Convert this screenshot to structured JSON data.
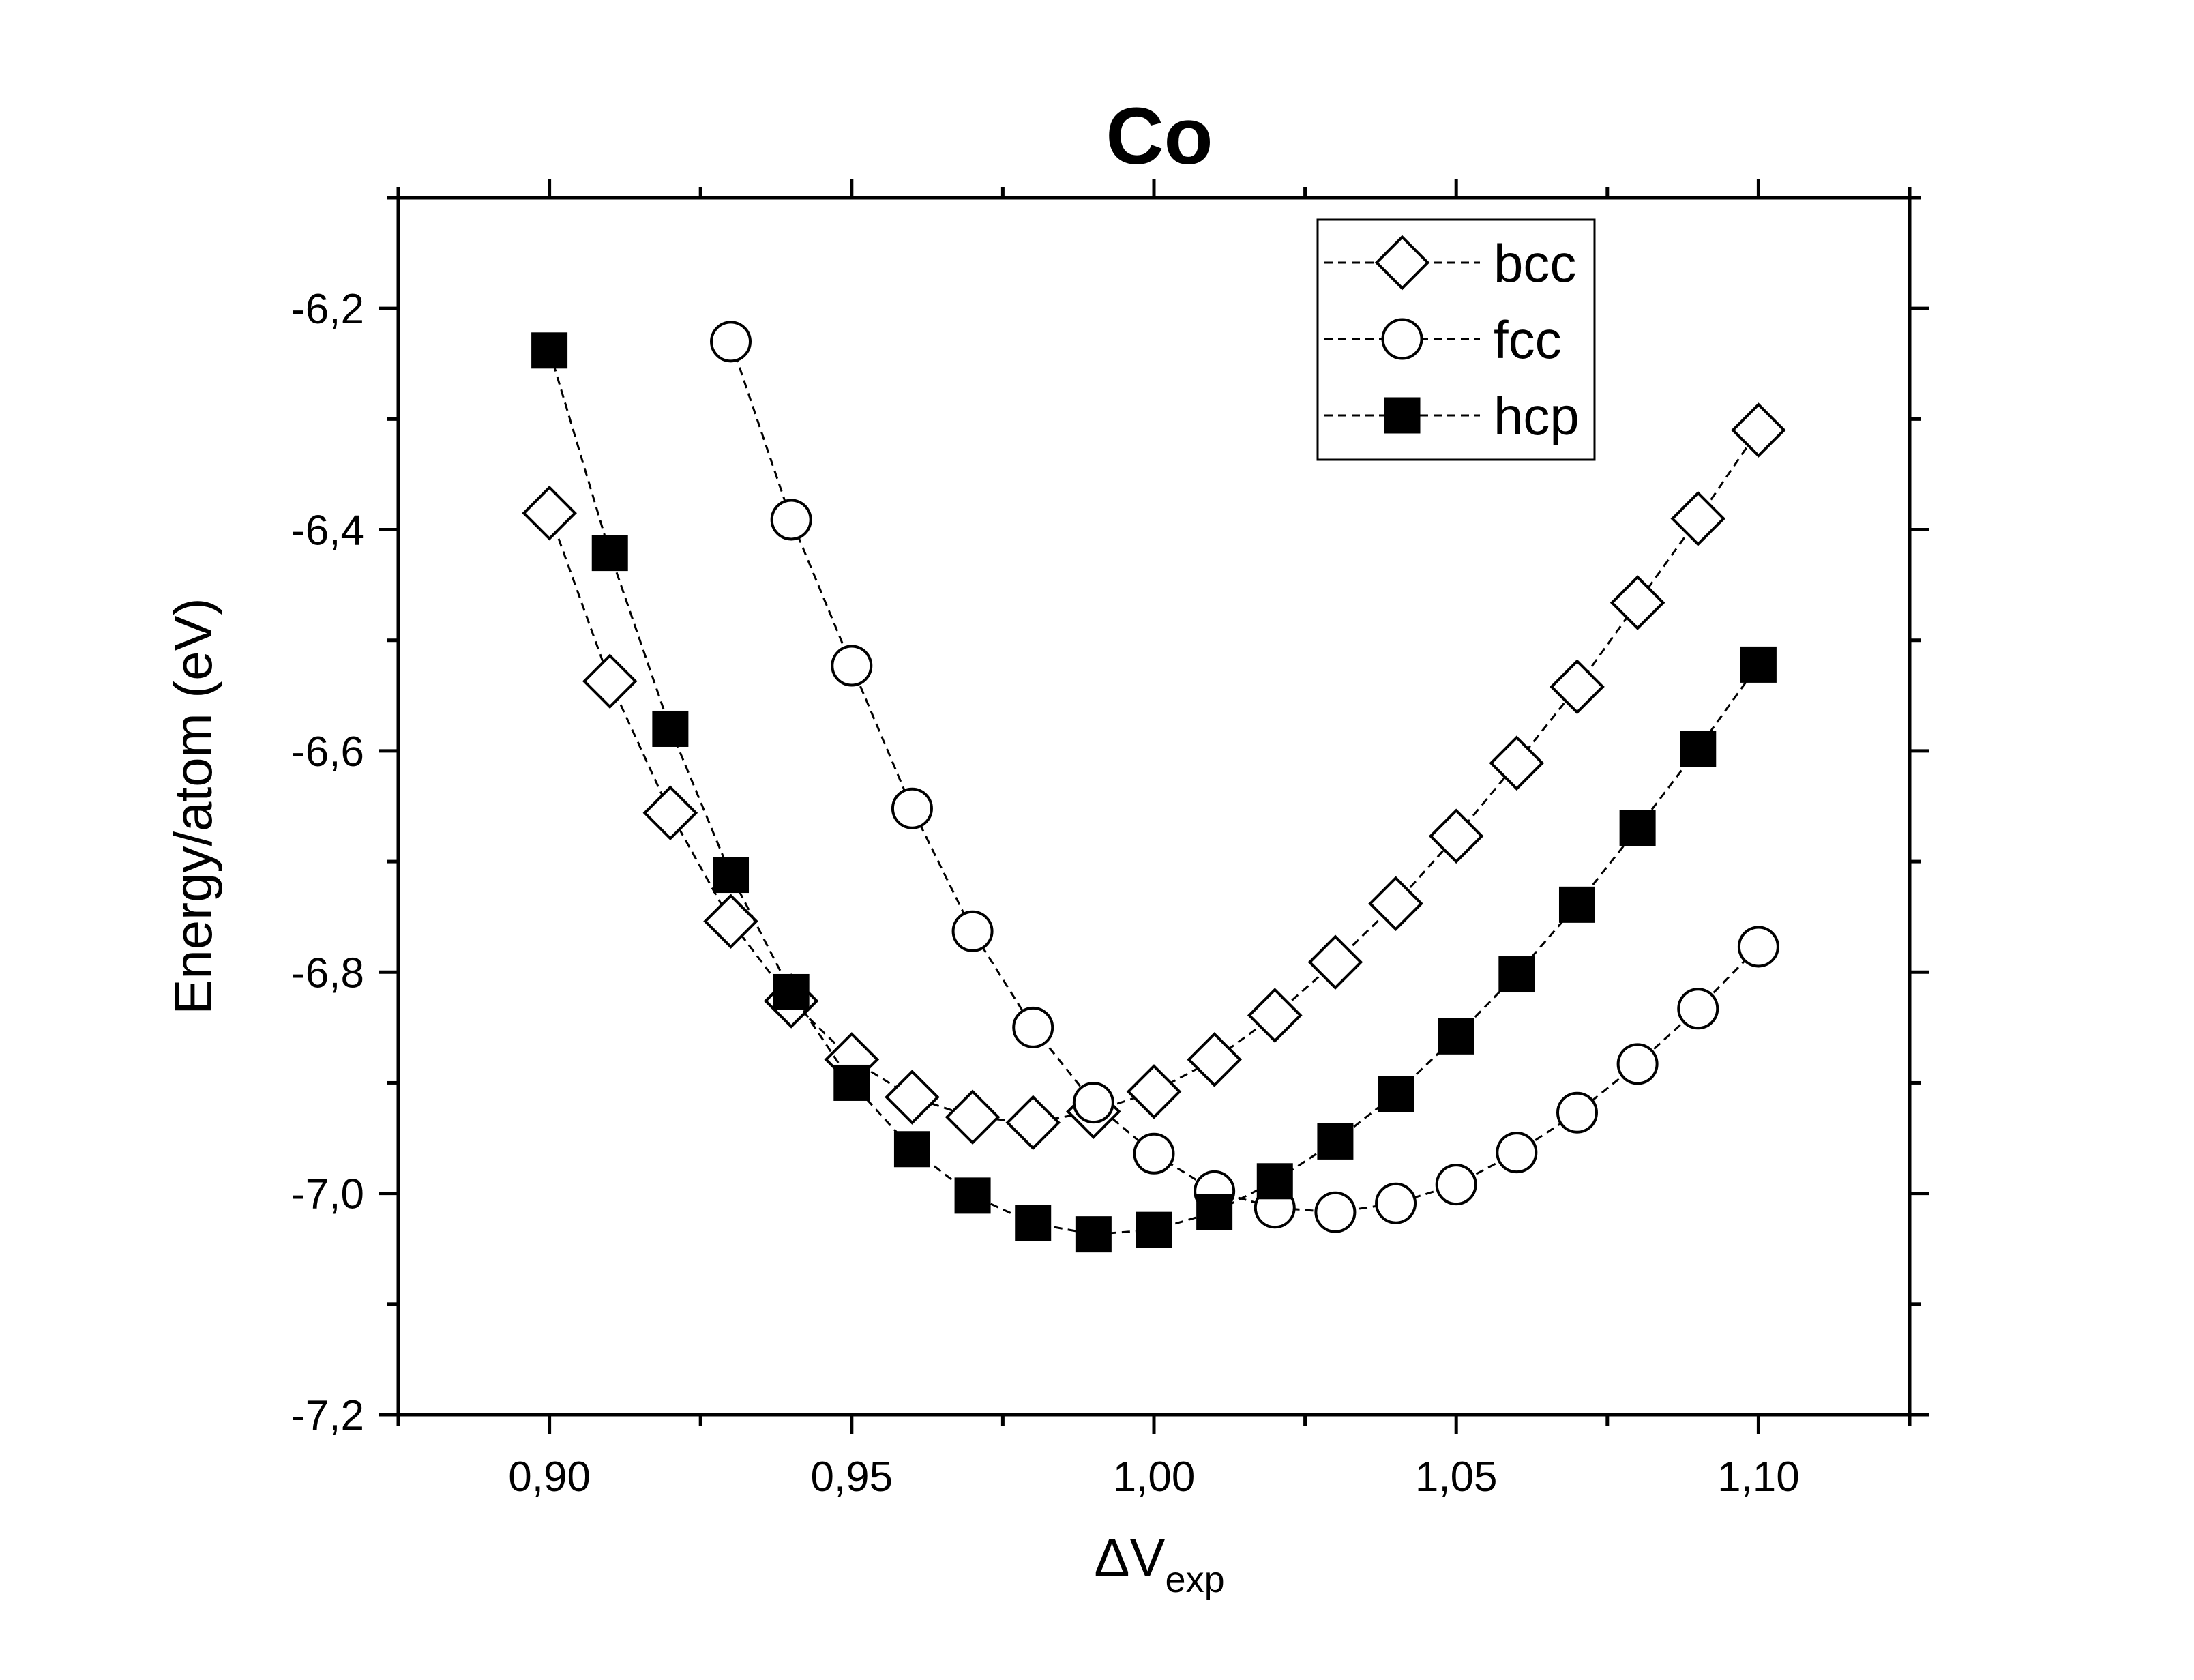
{
  "chart_data": {
    "type": "line",
    "title": "Co",
    "xlabel": "ΔV",
    "xlabel_subscript": "exp",
    "ylabel": "Energy/atom (eV)",
    "xlim": [
      0.875,
      1.125
    ],
    "ylim": [
      -7.2,
      -6.1
    ],
    "x_ticks": [
      0.9,
      0.95,
      1.0,
      1.05,
      1.1
    ],
    "x_tick_labels": [
      "0,90",
      "0,95",
      "1,00",
      "1,05",
      "1,10"
    ],
    "y_ticks": [
      -6.2,
      -6.4,
      -6.6,
      -6.8,
      -7.0,
      -7.2
    ],
    "y_tick_labels": [
      "-6,2",
      "-6,4",
      "-6,6",
      "-6,8",
      "-7,0",
      "-7,2"
    ],
    "grid": false,
    "legend_position": "top-right",
    "line_style": "dashed",
    "series": [
      {
        "name": "bcc",
        "marker": "diamond-open",
        "x": [
          0.9,
          0.91,
          0.92,
          0.93,
          0.94,
          0.95,
          0.96,
          0.97,
          0.98,
          0.99,
          1.0,
          1.01,
          1.02,
          1.03,
          1.04,
          1.05,
          1.06,
          1.07,
          1.08,
          1.09,
          1.1
        ],
        "y": [
          -6.385,
          -6.537,
          -6.656,
          -6.754,
          -6.826,
          -6.879,
          -6.913,
          -6.931,
          -6.936,
          -6.926,
          -6.908,
          -6.879,
          -6.839,
          -6.791,
          -6.738,
          -6.677,
          -6.611,
          -6.542,
          -6.466,
          -6.39,
          -6.31
        ]
      },
      {
        "name": "fcc",
        "marker": "circle-open",
        "x": [
          0.93,
          0.94,
          0.95,
          0.96,
          0.97,
          0.98,
          0.99,
          1.0,
          1.01,
          1.02,
          1.03,
          1.04,
          1.05,
          1.06,
          1.07,
          1.08,
          1.09,
          1.1
        ],
        "y": [
          -6.23,
          -6.391,
          -6.523,
          -6.652,
          -6.763,
          -6.85,
          -6.918,
          -6.964,
          -6.998,
          -7.013,
          -7.017,
          -7.009,
          -6.992,
          -6.963,
          -6.927,
          -6.883,
          -6.833,
          -6.777
        ]
      },
      {
        "name": "hcp",
        "marker": "square-filled",
        "x": [
          0.9,
          0.91,
          0.92,
          0.93,
          0.94,
          0.95,
          0.96,
          0.97,
          0.98,
          0.99,
          1.0,
          1.01,
          1.02,
          1.03,
          1.04,
          1.05,
          1.06,
          1.07,
          1.08,
          1.09,
          1.1
        ],
        "y": [
          -6.238,
          -6.421,
          -6.58,
          -6.712,
          -6.818,
          -6.9,
          -6.96,
          -7.002,
          -7.027,
          -7.037,
          -7.033,
          -7.017,
          -6.989,
          -6.953,
          -6.91,
          -6.858,
          -6.802,
          -6.739,
          -6.67,
          -6.598,
          -6.522
        ]
      }
    ]
  }
}
